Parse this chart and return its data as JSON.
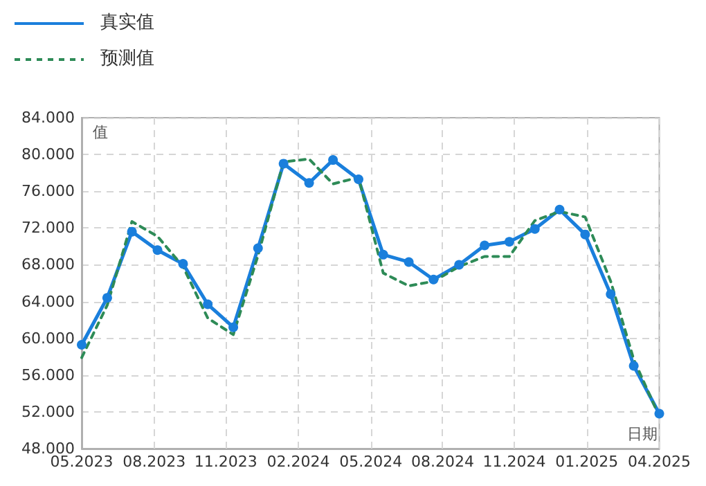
{
  "chart_data": {
    "type": "line",
    "xlabel": "日期",
    "ylabel": "值",
    "x": [
      "2023-05",
      "2023-06",
      "2023-07",
      "2023-08",
      "2023-09",
      "2023-10",
      "2023-11",
      "2023-12",
      "2024-01",
      "2024-02",
      "2024-03",
      "2024-04",
      "2024-05",
      "2024-06",
      "2024-07",
      "2024-08",
      "2024-09",
      "2024-10",
      "2024-11",
      "2024-12",
      "2025-01",
      "2025-02",
      "2025-03",
      "2025-04"
    ],
    "series": [
      {
        "name": "真实值",
        "color": "#1a7fdc",
        "marker": "circle",
        "line_style": "solid",
        "values": [
          59.3,
          64.4,
          71.6,
          69.6,
          68.1,
          63.7,
          61.2,
          69.8,
          79.0,
          76.9,
          79.4,
          77.3,
          69.1,
          68.3,
          66.4,
          68.0,
          70.1,
          70.5,
          71.9,
          74.0,
          71.3,
          64.8,
          57.0,
          51.8
        ]
      },
      {
        "name": "预测值",
        "color": "#2e8b57",
        "marker": "none",
        "line_style": "dashed",
        "values": [
          57.9,
          63.6,
          72.7,
          71.1,
          67.8,
          62.2,
          60.4,
          69.0,
          79.2,
          79.5,
          76.8,
          77.5,
          67.1,
          65.7,
          66.2,
          67.8,
          68.9,
          68.9,
          72.8,
          73.8,
          73.2,
          66.2,
          57.7,
          51.5
        ]
      }
    ],
    "xlim": [
      "2023-05",
      "2025-04"
    ],
    "xticks": [
      {
        "value": "2023-05-01",
        "label": "05.2023"
      },
      {
        "value": "2023-07-28",
        "label": "08.2023"
      },
      {
        "value": "2023-10-23",
        "label": "11.2023"
      },
      {
        "value": "2024-01-19",
        "label": "02.2024"
      },
      {
        "value": "2024-04-16",
        "label": "05.2024"
      },
      {
        "value": "2024-07-12",
        "label": "08.2024"
      },
      {
        "value": "2024-10-07",
        "label": "11.2024"
      },
      {
        "value": "2025-01-03",
        "label": "01.2025"
      },
      {
        "value": "2025-04-01",
        "label": "04.2025"
      }
    ],
    "ylim": [
      48,
      84
    ],
    "yticks": [
      {
        "value": 48,
        "label": "48.000"
      },
      {
        "value": 52,
        "label": "52.000"
      },
      {
        "value": 56,
        "label": "56.000"
      },
      {
        "value": 60,
        "label": "60.000"
      },
      {
        "value": 64,
        "label": "64.000"
      },
      {
        "value": 68,
        "label": "68.000"
      },
      {
        "value": 72,
        "label": "72.000"
      },
      {
        "value": 76,
        "label": "76.000"
      },
      {
        "value": 80,
        "label": "80.000"
      },
      {
        "value": 84,
        "label": "84.000"
      }
    ],
    "grid": true,
    "legend": "top left"
  }
}
